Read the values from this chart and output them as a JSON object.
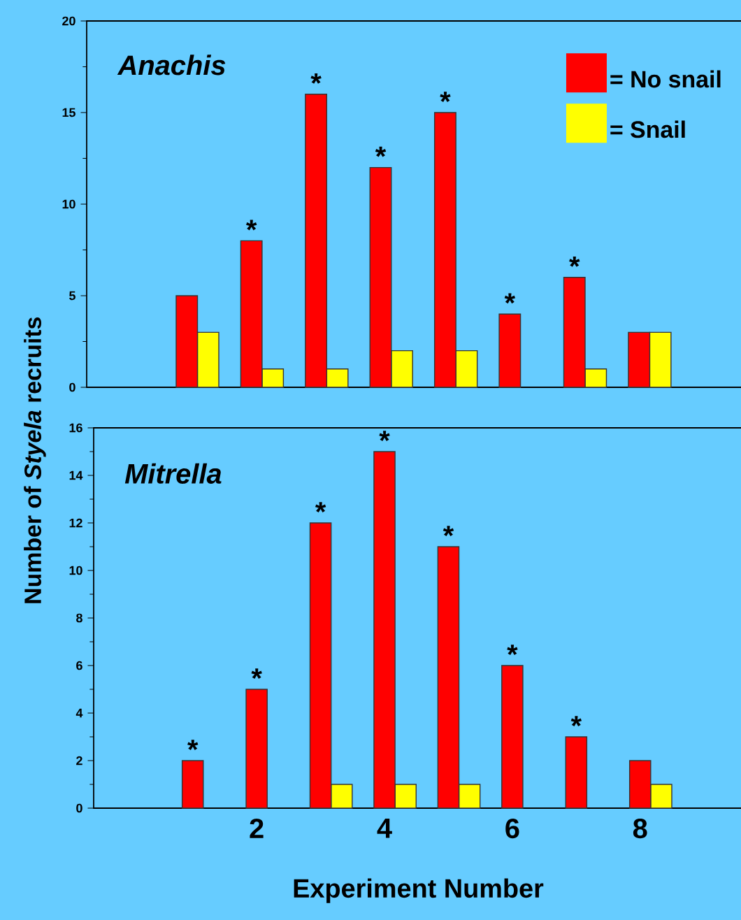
{
  "chart_data": [
    {
      "type": "bar",
      "title": "Anachis",
      "ylabel": "Number of *Styela* recruits",
      "x": [
        1,
        2,
        3,
        4,
        5,
        6,
        7,
        8
      ],
      "series": [
        {
          "name": "= Snail",
          "color": "#ffff00",
          "values": [
            3,
            1,
            1,
            2,
            2,
            null,
            1,
            3
          ]
        },
        {
          "name": "= No snail",
          "color": "#ff0000",
          "values": [
            5,
            8,
            16,
            12,
            15,
            4,
            6,
            3
          ]
        }
      ],
      "xlim": [
        -0.55,
        9.6
      ],
      "xticks": [
        2,
        4,
        6,
        8
      ],
      "ylim": [
        0,
        20
      ],
      "yticks": [
        0,
        5,
        10,
        15,
        20
      ],
      "tick_labels": "y",
      "legend": "top right",
      "grid": false,
      "annotations": [
        {
          "text": "*",
          "x": 2,
          "y": 8
        },
        {
          "text": "*",
          "x": 3,
          "y": 16
        },
        {
          "text": "*",
          "x": 4,
          "y": 12
        },
        {
          "text": "*",
          "x": 5,
          "y": 15
        },
        {
          "text": "*",
          "x": 6,
          "y": 4
        },
        {
          "text": "*",
          "x": 7,
          "y": 6
        }
      ]
    },
    {
      "type": "bar",
      "title": "Mitrella",
      "xlabel": "Experiment Number",
      "x": [
        1,
        2,
        3,
        4,
        5,
        6,
        7,
        8
      ],
      "series": [
        {
          "color": "#ffff00",
          "values": [
            null,
            null,
            1,
            1,
            1,
            null,
            null,
            1
          ]
        },
        {
          "color": "#ff0000",
          "values": [
            2,
            5,
            12,
            15,
            11,
            6,
            3,
            2
          ]
        }
      ],
      "xlim": [
        -0.55,
        9.6
      ],
      "xticks": [
        2,
        4,
        6,
        8
      ],
      "ylim": [
        0,
        16
      ],
      "yticks": [
        0,
        2,
        4,
        6,
        8,
        10,
        12,
        14,
        16
      ],
      "legend": false,
      "grid": false,
      "annotations": [
        {
          "text": "*",
          "x": 1,
          "y": 2
        },
        {
          "text": "*",
          "x": 2,
          "y": 5
        },
        {
          "text": "*",
          "x": 3,
          "y": 12
        },
        {
          "text": "*",
          "x": 4,
          "y": 15
        },
        {
          "text": "*",
          "x": 5,
          "y": 11
        },
        {
          "text": "*",
          "x": 6,
          "y": 6
        },
        {
          "text": "*",
          "x": 7,
          "y": 3
        }
      ]
    }
  ]
}
